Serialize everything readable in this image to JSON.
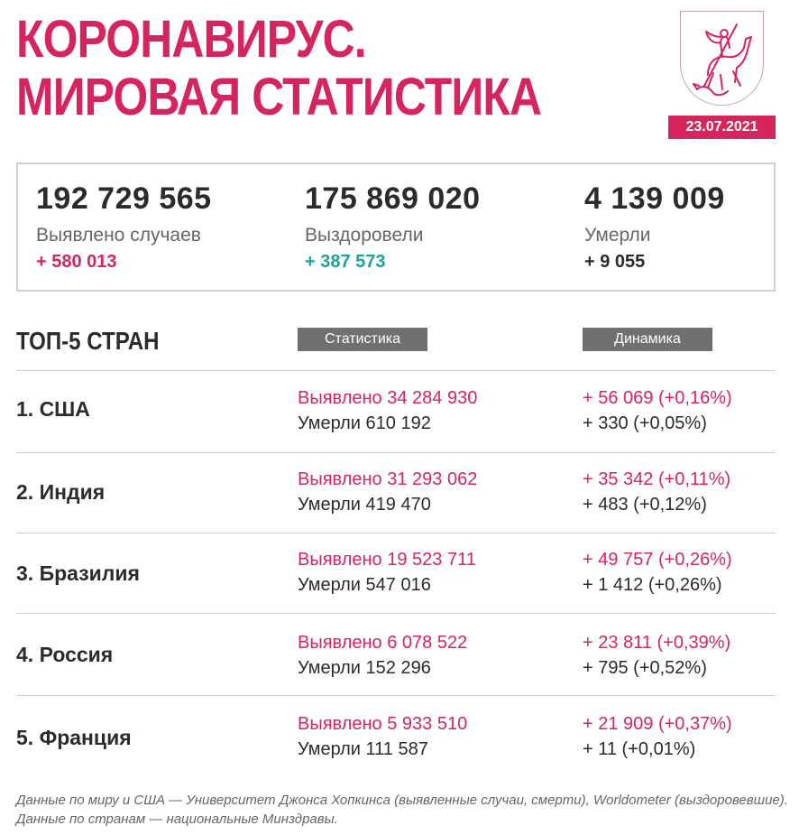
{
  "header": {
    "title_line1": "КОРОНАВИРУС.",
    "title_line2": "МИРОВАЯ СТАТИСТИКА",
    "date": "23.07.2021",
    "crest_icon": "moscow-coat-of-arms-icon"
  },
  "summary": {
    "cases": {
      "value": "192 729 565",
      "label": "Выявлено случаев",
      "delta": "+ 580 013"
    },
    "recovered": {
      "value": "175 869 020",
      "label": "Выздоровели",
      "delta": "+ 387 573"
    },
    "deaths": {
      "value": "4 139 009",
      "label": "Умерли",
      "delta": "+ 9 055"
    }
  },
  "top5": {
    "heading": "ТОП-5 СТРАН",
    "col_stats": "Статистика",
    "col_dynamics": "Динамика",
    "rows": [
      {
        "country": "1. США",
        "cases": "Выявлено 34 284 930",
        "deaths": "Умерли 610 192",
        "cases_delta": "+ 56 069 (+0,16%)",
        "deaths_delta": "+ 330 (+0,05%)"
      },
      {
        "country": "2. Индия",
        "cases": "Выявлено 31 293 062",
        "deaths": "Умерли 419 470",
        "cases_delta": "+ 35 342 (+0,11%)",
        "deaths_delta": "+ 483 (+0,12%)"
      },
      {
        "country": "3. Бразилия",
        "cases": "Выявлено 19 523 711",
        "deaths": "Умерли 547 016",
        "cases_delta": "+ 49 757 (+0,26%)",
        "deaths_delta": "+ 1 412 (+0,26%)"
      },
      {
        "country": "4. Россия",
        "cases": "Выявлено 6 078 522",
        "deaths": "Умерли 152 296",
        "cases_delta": "+ 23 811 (+0,39%)",
        "deaths_delta": "+ 795 (+0,52%)"
      },
      {
        "country": "5. Франция",
        "cases": "Выявлено 5 933 510",
        "deaths": "Умерли 111 587",
        "cases_delta": "+ 21 909 (+0,37%)",
        "deaths_delta": "+ 11 (+0,01%)"
      }
    ]
  },
  "footnote": "Данные по миру и США — Университет Джонса Хопкинса (выявленные случаи, смерти), Worldometer (выздоровевшие). Данные по странам — национальные Минздравы.",
  "colors": {
    "accent": "#d6245d",
    "recovered": "#1aa39a",
    "badge": "#707070"
  }
}
